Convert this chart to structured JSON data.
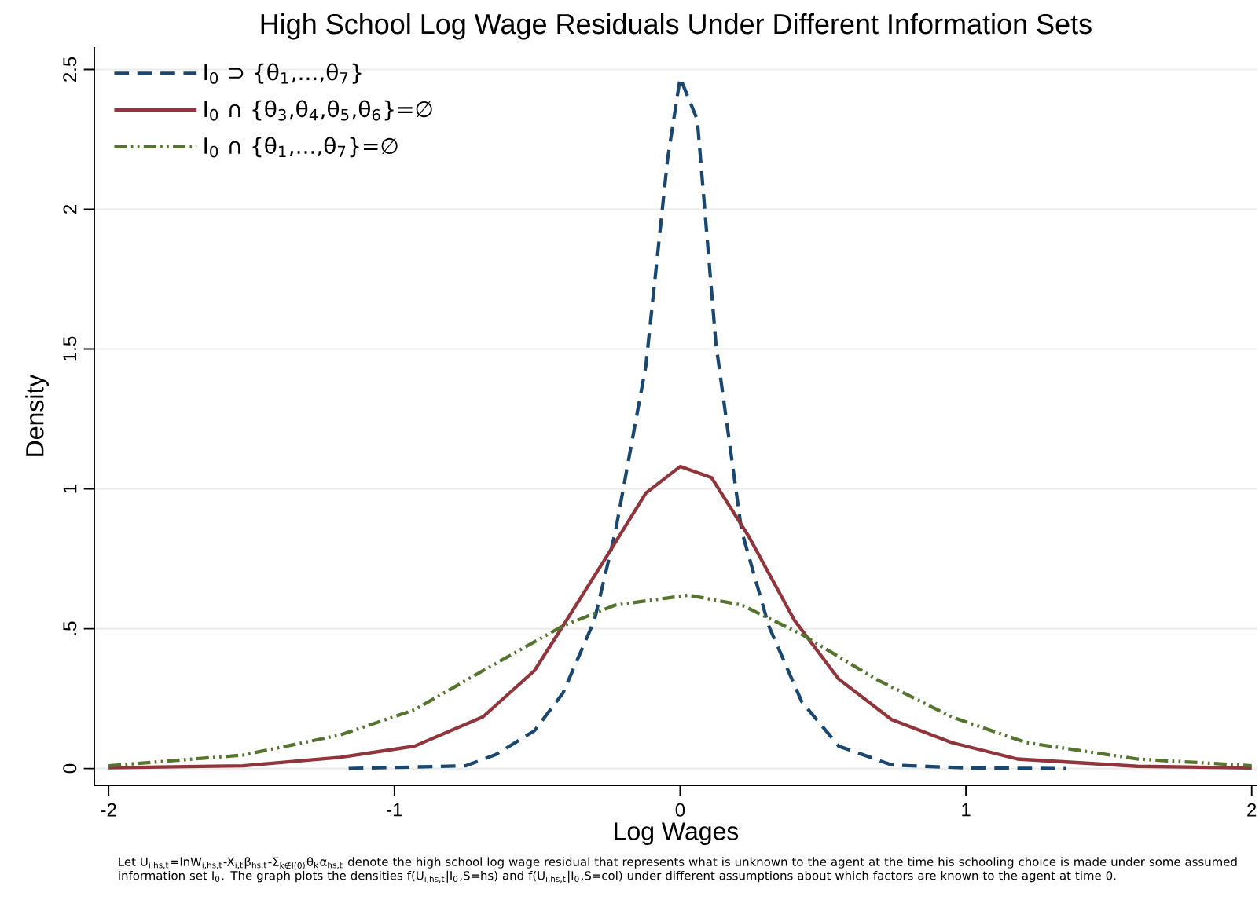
{
  "chart_data": {
    "type": "line",
    "title": "High School Log Wage Residuals Under Different Information Sets",
    "xlabel": "Log Wages",
    "ylabel": "Density",
    "xlim": [
      -2.05,
      2.02
    ],
    "ylim": [
      -0.06,
      2.58
    ],
    "xticks": [
      -2,
      -1,
      0,
      1,
      2
    ],
    "yticks": [
      0,
      {
        "value": 0.5,
        "label": ".5"
      },
      1,
      1.5,
      2,
      2.5
    ],
    "grid": "y",
    "legend": "top left",
    "marker": "none",
    "annotations": [
      "Let U$_{i,hs,t}$=lnW$_{i,hs,t}$-X$_{i,t}$β$_{hs,t}$-Σ$_{k∉I(0)}$θ$_{k}$α$_{hs,t}$ denote the high school log wage residual that represents what is unknown to the agent at the time his schooling choice is made under some assumed information set I$_{0}$. The graph plots the densities f(U$_{i,hs,t}$|I$_{0}$,S=hs) and f(U$_{i,hs,t}$|I$_{0}$,S=col) under different assumptions about which factors are known to the agent at time 0."
    ],
    "series": [
      {
        "name": "I$_{0}$ ⊃ {θ$_{1}$,...,θ$_{7}$}",
        "color": "#1a476f",
        "line_style": "dashed",
        "x": [
          -1.16,
          -0.75,
          -0.645,
          -0.51,
          -0.41,
          -0.3,
          -0.226,
          -0.12,
          -0.044,
          0.0,
          0.06,
          0.125,
          0.215,
          0.31,
          0.425,
          0.555,
          0.74,
          1.0,
          1.35
        ],
        "values": [
          0.0,
          0.01,
          0.05,
          0.135,
          0.27,
          0.53,
          0.85,
          1.44,
          2.18,
          2.47,
          2.32,
          1.52,
          0.85,
          0.51,
          0.24,
          0.08,
          0.013,
          0.002,
          0.0
        ]
      },
      {
        "name": "I$_{0}$ ∩ {θ$_{3}$,θ$_{4}$,θ$_{5}$,θ$_{6}$}=∅",
        "color": "#90353b",
        "line_style": "solid",
        "x": [
          -2.0,
          -1.53,
          -1.19,
          -0.93,
          -0.69,
          -0.51,
          -0.41,
          -0.25,
          -0.12,
          0.0,
          0.11,
          0.24,
          0.4,
          0.555,
          0.74,
          0.95,
          1.18,
          1.6,
          2.0
        ],
        "values": [
          0.003,
          0.01,
          0.04,
          0.08,
          0.185,
          0.35,
          0.51,
          0.77,
          0.985,
          1.08,
          1.04,
          0.83,
          0.53,
          0.32,
          0.175,
          0.093,
          0.034,
          0.008,
          0.002
        ]
      },
      {
        "name": "I$_{0}$ ∩ {θ$_{1}$,...,θ$_{7}$}=∅",
        "color": "#55752f",
        "line_style": "dotted",
        "x": [
          -2.0,
          -1.53,
          -1.19,
          -0.93,
          -0.69,
          -0.41,
          -0.226,
          0.03,
          0.215,
          0.425,
          0.685,
          0.95,
          1.21,
          1.6,
          2.0
        ],
        "values": [
          0.01,
          0.048,
          0.12,
          0.21,
          0.35,
          0.51,
          0.585,
          0.62,
          0.585,
          0.48,
          0.32,
          0.185,
          0.093,
          0.034,
          0.01
        ]
      }
    ]
  }
}
